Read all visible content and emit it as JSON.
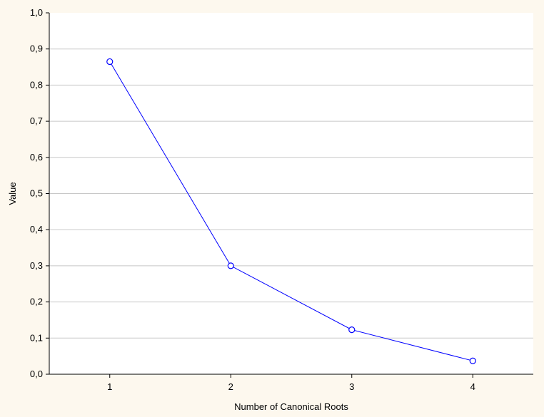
{
  "chart_data": {
    "type": "line",
    "title": "",
    "xlabel": "Number of Canonical Roots",
    "ylabel": "Value",
    "x": [
      1,
      2,
      3,
      4
    ],
    "xlim": [
      0.5,
      4.5
    ],
    "ylim": [
      0,
      1
    ],
    "x_ticks": [
      "1",
      "2",
      "3",
      "4"
    ],
    "y_ticks": [
      {
        "v": 0.0,
        "label": "0,0"
      },
      {
        "v": 0.1,
        "label": "0,1"
      },
      {
        "v": 0.2,
        "label": "0,2"
      },
      {
        "v": 0.3,
        "label": "0,3"
      },
      {
        "v": 0.4,
        "label": "0,4"
      },
      {
        "v": 0.5,
        "label": "0,5"
      },
      {
        "v": 0.6,
        "label": "0,6"
      },
      {
        "v": 0.7,
        "label": "0,7"
      },
      {
        "v": 0.8,
        "label": "0,8"
      },
      {
        "v": 0.9,
        "label": "0,9"
      },
      {
        "v": 1.0,
        "label": "1,0"
      }
    ],
    "series": [
      {
        "values": [
          0.865,
          0.3,
          0.123,
          0.037
        ],
        "color": "#0000ff",
        "marker": "circle"
      }
    ],
    "grid": "horizontal",
    "colors": {
      "background": "#fdf8ee",
      "plot_area": "#ffffff",
      "gridline": "#c8c8c8",
      "axis": "#000000"
    }
  }
}
